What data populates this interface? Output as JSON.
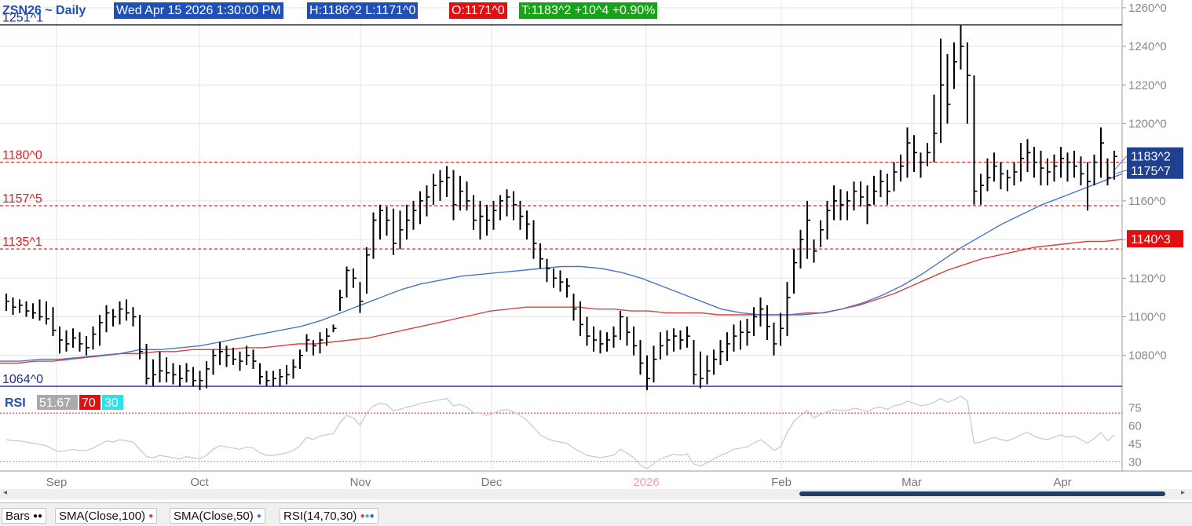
{
  "header": {
    "symbol": "ZSN26 ~ Daily",
    "datetime": "Wed Apr 15 2026 1:30:00 PM",
    "high_low": "H:1186^2  L:1171^0",
    "open": "O:1171^0",
    "change": "T:1183^2  +10^4  +0.90%"
  },
  "colors": {
    "header_blue": "#1f4fb8",
    "header_red": "#e01010",
    "header_green": "#16a316",
    "sma100": "#d94040",
    "sma50": "#4a76c0",
    "rsi_line": "#c8c8c8",
    "hline_blue": "#1d2d8c",
    "hline_red": "#e02020",
    "price_axis_label": "#1f3f8f"
  },
  "chart_data": {
    "type": "bar",
    "symbol": "ZSN26",
    "interval": "Daily",
    "y_axis": {
      "ticks": [
        "1260^0",
        "1240^0",
        "1220^0",
        "1200^0",
        "1180^0",
        "1160^0",
        "1140^0",
        "1120^0",
        "1100^0",
        "1080^0"
      ],
      "range": [
        1062,
        1264
      ],
      "tick_values": [
        1260,
        1240,
        1220,
        1200,
        1180,
        1160,
        1140,
        1120,
        1100,
        1080
      ]
    },
    "x_axis": {
      "ticks": [
        "Sep",
        "Oct",
        "Nov",
        "Dec",
        "2026",
        "Feb",
        "Mar",
        "Apr"
      ],
      "year_tick_color": "#f0a0a0"
    },
    "ohlc_bars": [
      [
        1112,
        1103,
        1108
      ],
      [
        1110,
        1101,
        1105
      ],
      [
        1109,
        1102,
        1106
      ],
      [
        1108,
        1100,
        1103
      ],
      [
        1107,
        1099,
        1102
      ],
      [
        1109,
        1098,
        1100
      ],
      [
        1108,
        1096,
        1099
      ],
      [
        1105,
        1090,
        1093
      ],
      [
        1095,
        1081,
        1088
      ],
      [
        1093,
        1082,
        1086
      ],
      [
        1094,
        1084,
        1089
      ],
      [
        1092,
        1082,
        1086
      ],
      [
        1090,
        1080,
        1084
      ],
      [
        1095,
        1083,
        1091
      ],
      [
        1101,
        1085,
        1097
      ],
      [
        1106,
        1092,
        1102
      ],
      [
        1104,
        1095,
        1100
      ],
      [
        1108,
        1096,
        1104
      ],
      [
        1109,
        1098,
        1102
      ],
      [
        1105,
        1095,
        1100
      ],
      [
        1101,
        1078,
        1082
      ],
      [
        1086,
        1065,
        1068
      ],
      [
        1078,
        1064,
        1070
      ],
      [
        1082,
        1066,
        1072
      ],
      [
        1079,
        1066,
        1071
      ],
      [
        1076,
        1065,
        1070
      ],
      [
        1075,
        1064,
        1068
      ],
      [
        1076,
        1066,
        1072
      ],
      [
        1074,
        1064,
        1067
      ],
      [
        1072,
        1062,
        1067
      ],
      [
        1077,
        1063,
        1073
      ],
      [
        1083,
        1070,
        1080
      ],
      [
        1087,
        1075,
        1082
      ],
      [
        1085,
        1074,
        1080
      ],
      [
        1084,
        1075,
        1078
      ],
      [
        1082,
        1072,
        1077
      ],
      [
        1085,
        1075,
        1080
      ],
      [
        1083,
        1073,
        1077
      ],
      [
        1076,
        1065,
        1069
      ],
      [
        1072,
        1064,
        1067
      ],
      [
        1072,
        1064,
        1068
      ],
      [
        1073,
        1064,
        1069
      ],
      [
        1075,
        1065,
        1070
      ],
      [
        1078,
        1068,
        1074
      ],
      [
        1083,
        1073,
        1080
      ],
      [
        1091,
        1082,
        1088
      ],
      [
        1088,
        1080,
        1085
      ],
      [
        1092,
        1081,
        1088
      ],
      [
        1094,
        1085,
        1090
      ],
      [
        1096,
        1092,
        1094
      ],
      [
        1114,
        1103,
        1110
      ],
      [
        1126,
        1110,
        1124
      ],
      [
        1125,
        1115,
        1120
      ],
      [
        1118,
        1102,
        1108
      ],
      [
        1136,
        1112,
        1132
      ],
      [
        1154,
        1130,
        1150
      ],
      [
        1158,
        1140,
        1155
      ],
      [
        1157,
        1142,
        1150
      ],
      [
        1156,
        1132,
        1138
      ],
      [
        1155,
        1135,
        1145
      ],
      [
        1158,
        1140,
        1150
      ],
      [
        1160,
        1145,
        1155
      ],
      [
        1165,
        1148,
        1160
      ],
      [
        1168,
        1152,
        1162
      ],
      [
        1174,
        1158,
        1168
      ],
      [
        1176,
        1160,
        1170
      ],
      [
        1178,
        1162,
        1172
      ],
      [
        1176,
        1150,
        1158
      ],
      [
        1173,
        1155,
        1165
      ],
      [
        1170,
        1155,
        1160
      ],
      [
        1163,
        1145,
        1150
      ],
      [
        1160,
        1140,
        1152
      ],
      [
        1158,
        1142,
        1150
      ],
      [
        1160,
        1145,
        1155
      ],
      [
        1163,
        1150,
        1160
      ],
      [
        1166,
        1152,
        1162
      ],
      [
        1165,
        1150,
        1158
      ],
      [
        1160,
        1145,
        1152
      ],
      [
        1155,
        1140,
        1148
      ],
      [
        1150,
        1130,
        1138
      ],
      [
        1138,
        1125,
        1130
      ],
      [
        1130,
        1118,
        1125
      ],
      [
        1125,
        1115,
        1120
      ],
      [
        1124,
        1113,
        1118
      ],
      [
        1120,
        1110,
        1116
      ],
      [
        1112,
        1098,
        1104
      ],
      [
        1108,
        1090,
        1096
      ],
      [
        1100,
        1085,
        1090
      ],
      [
        1095,
        1082,
        1088
      ],
      [
        1093,
        1081,
        1086
      ],
      [
        1092,
        1082,
        1088
      ],
      [
        1095,
        1084,
        1090
      ],
      [
        1103,
        1088,
        1100
      ],
      [
        1100,
        1085,
        1092
      ],
      [
        1095,
        1080,
        1085
      ],
      [
        1088,
        1070,
        1076
      ],
      [
        1080,
        1062,
        1068
      ],
      [
        1085,
        1066,
        1078
      ],
      [
        1092,
        1078,
        1085
      ],
      [
        1093,
        1080,
        1088
      ],
      [
        1094,
        1082,
        1090
      ],
      [
        1093,
        1083,
        1088
      ],
      [
        1095,
        1084,
        1090
      ],
      [
        1088,
        1065,
        1070
      ],
      [
        1082,
        1063,
        1068
      ],
      [
        1080,
        1065,
        1072
      ],
      [
        1083,
        1070,
        1078
      ],
      [
        1088,
        1075,
        1082
      ],
      [
        1092,
        1077,
        1086
      ],
      [
        1096,
        1082,
        1090
      ],
      [
        1098,
        1083,
        1092
      ],
      [
        1099,
        1085,
        1092
      ],
      [
        1105,
        1090,
        1100
      ],
      [
        1110,
        1095,
        1104
      ],
      [
        1106,
        1088,
        1095
      ],
      [
        1097,
        1080,
        1086
      ],
      [
        1102,
        1085,
        1094
      ],
      [
        1118,
        1090,
        1110
      ],
      [
        1135,
        1112,
        1128
      ],
      [
        1145,
        1125,
        1140
      ],
      [
        1160,
        1130,
        1150
      ],
      [
        1140,
        1128,
        1134
      ],
      [
        1150,
        1136,
        1145
      ],
      [
        1160,
        1140,
        1155
      ],
      [
        1168,
        1150,
        1160
      ],
      [
        1166,
        1150,
        1158
      ],
      [
        1165,
        1150,
        1160
      ],
      [
        1170,
        1155,
        1165
      ],
      [
        1170,
        1157,
        1162
      ],
      [
        1168,
        1148,
        1158
      ],
      [
        1173,
        1158,
        1165
      ],
      [
        1176,
        1162,
        1170
      ],
      [
        1174,
        1158,
        1165
      ],
      [
        1180,
        1165,
        1175
      ],
      [
        1184,
        1170,
        1178
      ],
      [
        1198,
        1172,
        1190
      ],
      [
        1194,
        1175,
        1185
      ],
      [
        1185,
        1172,
        1180
      ],
      [
        1190,
        1178,
        1185
      ],
      [
        1215,
        1180,
        1195
      ],
      [
        1244,
        1190,
        1220
      ],
      [
        1236,
        1200,
        1210
      ],
      [
        1242,
        1218,
        1232
      ],
      [
        1251,
        1228,
        1240
      ],
      [
        1242,
        1200,
        1225
      ],
      [
        1225,
        1158,
        1165
      ],
      [
        1174,
        1158,
        1168
      ],
      [
        1182,
        1165,
        1172
      ],
      [
        1185,
        1170,
        1178
      ],
      [
        1180,
        1166,
        1174
      ],
      [
        1176,
        1165,
        1172
      ],
      [
        1180,
        1168,
        1175
      ],
      [
        1190,
        1170,
        1182
      ],
      [
        1192,
        1175,
        1185
      ],
      [
        1188,
        1172,
        1180
      ],
      [
        1186,
        1168,
        1177
      ],
      [
        1182,
        1168,
        1175
      ],
      [
        1184,
        1170,
        1178
      ],
      [
        1188,
        1172,
        1182
      ],
      [
        1185,
        1170,
        1180
      ],
      [
        1186,
        1172,
        1178
      ],
      [
        1183,
        1168,
        1174
      ],
      [
        1180,
        1155,
        1170
      ],
      [
        1184,
        1168,
        1180
      ],
      [
        1198,
        1172,
        1190
      ],
      [
        1182,
        1168,
        1172
      ],
      [
        1186,
        1171,
        1183
      ]
    ],
    "sma100": [
      1076,
      1076,
      1077,
      1077,
      1078,
      1079,
      1080,
      1081,
      1081,
      1082,
      1082,
      1083,
      1083,
      1083,
      1084,
      1084,
      1085,
      1086,
      1086,
      1087,
      1088,
      1089,
      1091,
      1093,
      1095,
      1097,
      1099,
      1101,
      1103,
      1104,
      1105,
      1105,
      1105,
      1105,
      1104,
      1104,
      1103,
      1103,
      1102,
      1102,
      1102,
      1101,
      1101,
      1101,
      1101,
      1101,
      1102,
      1102,
      1104,
      1106,
      1109,
      1112,
      1116,
      1120,
      1124,
      1127,
      1130,
      1132,
      1134,
      1136,
      1137,
      1138,
      1139,
      1139,
      1140
    ],
    "sma50": [
      1077,
      1077,
      1078,
      1078,
      1079,
      1080,
      1081,
      1083,
      1083,
      1084,
      1085,
      1087,
      1089,
      1091,
      1093,
      1095,
      1098,
      1102,
      1106,
      1110,
      1114,
      1117,
      1119,
      1121,
      1122,
      1123,
      1124,
      1125,
      1126,
      1126,
      1125,
      1123,
      1120,
      1116,
      1112,
      1108,
      1104,
      1102,
      1101,
      1101,
      1101,
      1102,
      1104,
      1107,
      1111,
      1116,
      1122,
      1129,
      1136,
      1142,
      1148,
      1153,
      1158,
      1162,
      1166,
      1170,
      1174
    ],
    "horizontal_lines": [
      {
        "label": "1251^1",
        "value": 1251.1,
        "color": "#1d2d8c"
      },
      {
        "label": "1180^0",
        "value": 1180.0,
        "color": "#e02020"
      },
      {
        "label": "1157^5",
        "value": 1157.5,
        "color": "#e02020"
      },
      {
        "label": "1135^1",
        "value": 1135.1,
        "color": "#e02020"
      },
      {
        "label": "1064^0",
        "value": 1064.0,
        "color": "#1d2d8c"
      }
    ],
    "price_labels": [
      {
        "text": "1183^2",
        "value": 1183.25,
        "bg": "#1f3f8f"
      },
      {
        "text": "1175^7",
        "value": 1175.9,
        "bg": "#1f3f8f"
      },
      {
        "text": "1140^3",
        "value": 1140.4,
        "bg": "#e01010"
      }
    ],
    "rsi": {
      "label": "RSI",
      "value": "51.67",
      "overbought": "70",
      "oversold": "30",
      "ticks": [
        "75",
        "60",
        "45",
        "30"
      ],
      "tick_values": [
        75,
        60,
        45,
        30
      ],
      "range": [
        22,
        87
      ],
      "values": [
        48,
        47,
        47,
        46,
        45,
        44,
        43,
        40,
        38,
        39,
        40,
        39,
        39,
        41,
        44,
        47,
        46,
        48,
        47,
        46,
        40,
        34,
        33,
        35,
        34,
        33,
        32,
        34,
        33,
        32,
        35,
        40,
        43,
        42,
        41,
        40,
        42,
        41,
        37,
        35,
        35,
        36,
        37,
        39,
        43,
        50,
        48,
        51,
        52,
        53,
        62,
        68,
        66,
        60,
        70,
        76,
        78,
        77,
        72,
        73,
        75,
        76,
        78,
        79,
        80,
        81,
        82,
        76,
        77,
        75,
        70,
        70,
        68,
        70,
        72,
        73,
        71,
        68,
        64,
        58,
        52,
        49,
        47,
        46,
        45,
        41,
        38,
        35,
        34,
        33,
        34,
        35,
        40,
        37,
        33,
        27,
        24,
        28,
        32,
        34,
        36,
        35,
        36,
        28,
        26,
        29,
        32,
        35,
        37,
        40,
        41,
        42,
        45,
        48,
        44,
        39,
        42,
        54,
        63,
        68,
        72,
        66,
        69,
        71,
        73,
        72,
        72,
        74,
        73,
        71,
        74,
        75,
        73,
        76,
        77,
        80,
        78,
        76,
        77,
        79,
        82,
        79,
        81,
        84,
        80,
        45,
        46,
        48,
        50,
        48,
        47,
        49,
        52,
        54,
        51,
        49,
        48,
        50,
        52,
        50,
        51,
        48,
        45,
        49,
        54,
        47,
        51.67
      ]
    }
  },
  "footer": {
    "studies": [
      "Bars",
      "SMA(Close,100)",
      "SMA(Close,50)",
      "RSI(14,70,30)"
    ]
  }
}
